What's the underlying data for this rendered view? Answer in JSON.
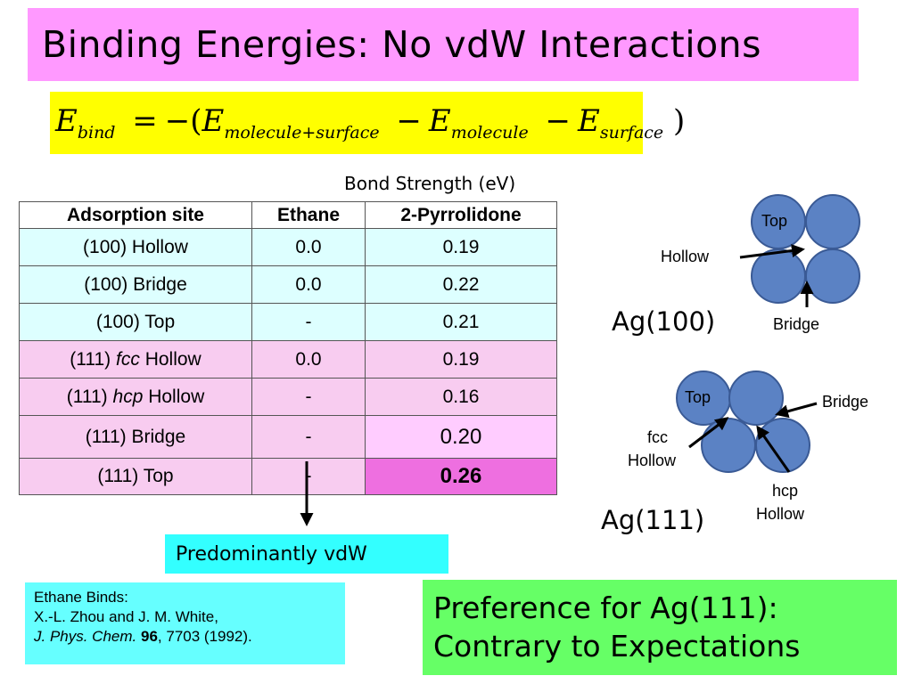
{
  "title": "Binding Energies:  No vdW Interactions",
  "equation": {
    "lhs": "E",
    "lhs_sub": "bind",
    "terms": [
      {
        "var": "E",
        "sub": "molecule+surface"
      },
      {
        "var": "E",
        "sub": "molecule"
      },
      {
        "var": "E",
        "sub": "surface"
      }
    ]
  },
  "units_label": "Bond Strength (eV)",
  "table": {
    "headers": [
      "Adsorption site",
      "Ethane",
      "2-Pyrrolidone"
    ],
    "rows": [
      {
        "site_pre": "(100) Hollow",
        "site_em": "",
        "site_post": "",
        "ethane": "0.0",
        "pyrrolidone": "0.19"
      },
      {
        "site_pre": "(100) Bridge",
        "site_em": "",
        "site_post": "",
        "ethane": "0.0",
        "pyrrolidone": "0.22"
      },
      {
        "site_pre": "(100) Top",
        "site_em": "",
        "site_post": "",
        "ethane": "-",
        "pyrrolidone": "0.21"
      },
      {
        "site_pre": "(111) ",
        "site_em": "fcc",
        "site_post": " Hollow",
        "ethane": "0.0",
        "pyrrolidone": "0.19"
      },
      {
        "site_pre": "(111) ",
        "site_em": "hcp",
        "site_post": " Hollow",
        "ethane": "-",
        "pyrrolidone": "0.16"
      },
      {
        "site_pre": "(111) Bridge",
        "site_em": "",
        "site_post": "",
        "ethane": "-",
        "pyrrolidone": "0.20"
      },
      {
        "site_pre": "(111) Top",
        "site_em": "",
        "site_post": "",
        "ethane": "-",
        "pyrrolidone": "0.26"
      }
    ]
  },
  "vdw_label": "Predominantly vdW",
  "reference": {
    "line1": "Ethane Binds:",
    "line2": "X.-L. Zhou and J. M. White,",
    "journal": "J. Phys. Chem.",
    "volume": "96",
    "rest": ", 7703 (1992)."
  },
  "preference": {
    "line1": "Preference for Ag(111):",
    "line2": "Contrary to Expectations"
  },
  "ag100": {
    "name": "Ag(100)",
    "top": "Top",
    "hollow": "Hollow",
    "bridge": "Bridge"
  },
  "ag111": {
    "name": "Ag(111)",
    "top": "Top",
    "bridge": "Bridge",
    "fcc1": "fcc",
    "fcc2": "Hollow",
    "hcp1": "hcp",
    "hcp2": "Hollow"
  },
  "colors": {
    "atom_fill": "#5b82c4",
    "atom_stroke": "#3a5a95",
    "title_bg": "#ff99ff",
    "equation_bg": "#ffff00",
    "vdw_bg": "#33ffff",
    "reference_bg": "#66ffff",
    "preference_bg": "#66ff66",
    "highlight_max": "#ee6fe0"
  }
}
